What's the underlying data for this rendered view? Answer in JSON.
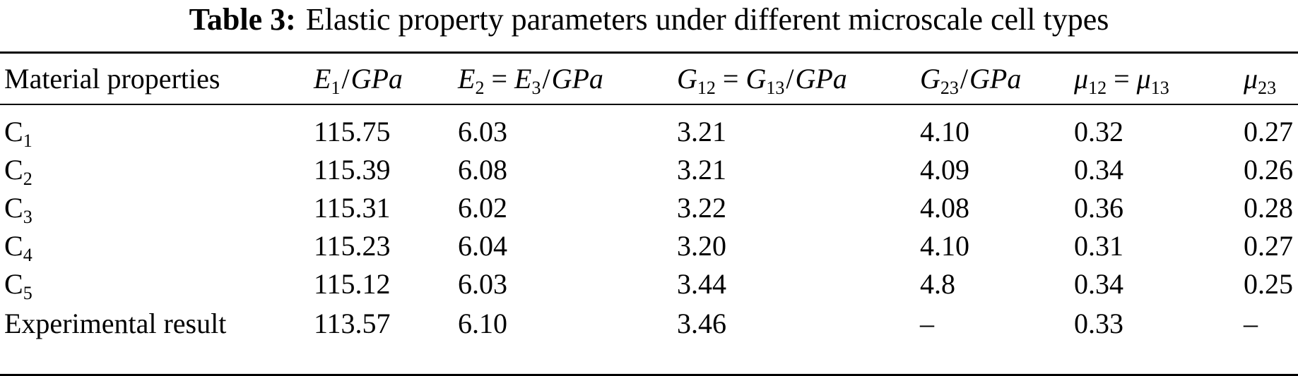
{
  "caption": {
    "label": "Table 3:",
    "text": "Elastic property parameters under different microscale cell types"
  },
  "headers": {
    "col0": "Material properties",
    "col1": {
      "sym": "E",
      "sub": "1",
      "unit": "GPa"
    },
    "col2": {
      "lhs": "E",
      "lhs_sub": "2",
      "op": "=",
      "rhs": "E",
      "rhs_sub": "3",
      "unit": "GPa"
    },
    "col3": {
      "lhs": "G",
      "lhs_sub": "12",
      "op": "=",
      "rhs": "G",
      "rhs_sub": "13",
      "unit": "GPa"
    },
    "col4": {
      "sym": "G",
      "sub": "23",
      "unit": "GPa"
    },
    "col5": {
      "lhs": "μ",
      "lhs_sub": "12",
      "op": "=",
      "rhs": "μ",
      "rhs_sub": "13"
    },
    "col6": {
      "sym": "μ",
      "sub": "23"
    },
    "slash": "/"
  },
  "rows": [
    {
      "label": "C",
      "label_sub": "1",
      "values": [
        "115.75",
        "6.03",
        "3.21",
        "4.10",
        "0.32",
        "0.27"
      ]
    },
    {
      "label": "C",
      "label_sub": "2",
      "values": [
        "115.39",
        "6.08",
        "3.21",
        "4.09",
        "0.34",
        "0.26"
      ]
    },
    {
      "label": "C",
      "label_sub": "3",
      "values": [
        "115.31",
        "6.02",
        "3.22",
        "4.08",
        "0.36",
        "0.28"
      ]
    },
    {
      "label": "C",
      "label_sub": "4",
      "values": [
        "115.23",
        "6.04",
        "3.20",
        "4.10",
        "0.31",
        "0.27"
      ]
    },
    {
      "label": "C",
      "label_sub": "5",
      "values": [
        "115.12",
        "6.03",
        "3.44",
        "4.8",
        "0.34",
        "0.25"
      ]
    },
    {
      "label": "Experimental result",
      "label_sub": "",
      "values": [
        "113.57",
        "6.10",
        "3.46",
        "–",
        "0.33",
        "–"
      ]
    }
  ]
}
